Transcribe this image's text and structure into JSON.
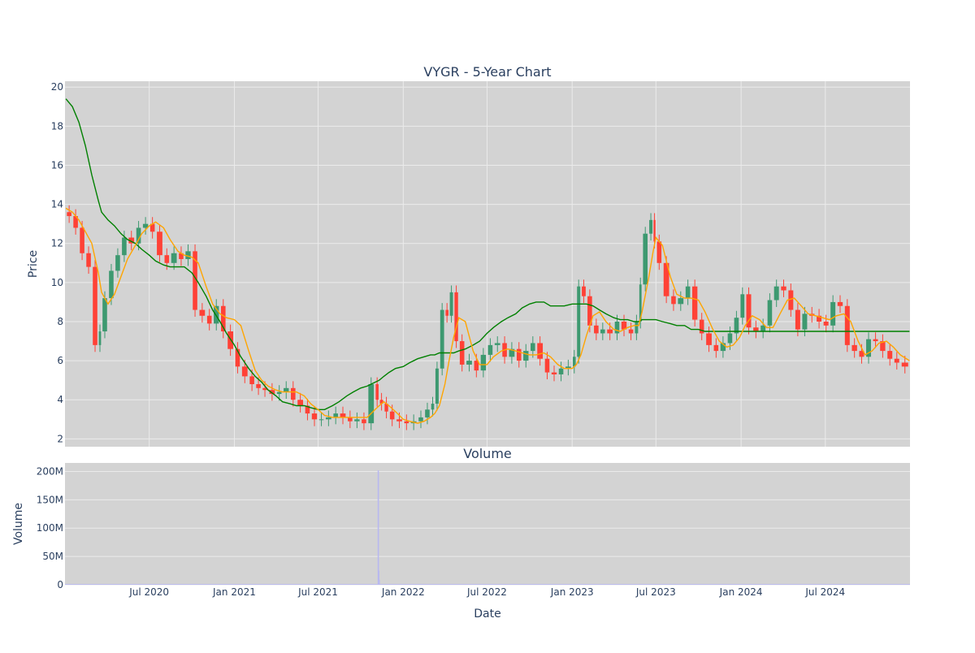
{
  "chart_data": [
    {
      "type": "candlestick",
      "title": "VYGR - 5-Year Chart",
      "ylabel": "Price",
      "ylim": [
        1.6,
        20.3
      ],
      "yticks": [
        2,
        4,
        6,
        8,
        10,
        12,
        14,
        16,
        18,
        20
      ],
      "xlim": [
        "2020-01-01",
        "2024-12-31"
      ],
      "grid": true,
      "legend": "none",
      "colors": {
        "up": "#3d9970",
        "down": "#ff4136",
        "ma50": "#ffa500",
        "ma200": "#008000",
        "plot_bg": "#d3d3d3",
        "grid": "#ebebeb"
      },
      "series": [
        {
          "role": "price",
          "x": [
            "2020-01-03",
            "2020-01-17",
            "2020-01-31",
            "2020-02-14",
            "2020-02-28",
            "2020-03-13",
            "2020-03-20",
            "2020-04-03",
            "2020-04-17",
            "2020-05-01",
            "2020-05-15",
            "2020-06-01",
            "2020-06-15",
            "2020-07-01",
            "2020-07-15",
            "2020-08-01",
            "2020-08-15",
            "2020-09-01",
            "2020-09-15",
            "2020-10-01",
            "2020-10-15",
            "2020-11-01",
            "2020-11-15",
            "2020-12-01",
            "2020-12-15",
            "2021-01-01",
            "2021-01-15",
            "2021-02-01",
            "2021-02-15",
            "2021-03-01",
            "2021-03-15",
            "2021-04-01",
            "2021-04-15",
            "2021-05-01",
            "2021-05-15",
            "2021-06-01",
            "2021-06-15",
            "2021-07-01",
            "2021-07-15",
            "2021-08-01",
            "2021-08-15",
            "2021-09-01",
            "2021-09-15",
            "2021-10-01",
            "2021-10-15",
            "2021-11-01",
            "2021-11-10",
            "2021-11-20",
            "2021-12-01",
            "2021-12-15",
            "2022-01-01",
            "2022-01-15",
            "2022-02-01",
            "2022-02-15",
            "2022-03-01",
            "2022-03-10",
            "2022-03-20",
            "2022-04-01",
            "2022-04-10",
            "2022-04-20",
            "2022-05-01",
            "2022-05-15",
            "2022-06-01",
            "2022-06-15",
            "2022-07-01",
            "2022-07-15",
            "2022-08-01",
            "2022-08-15",
            "2022-09-01",
            "2022-09-15",
            "2022-10-01",
            "2022-10-15",
            "2022-11-01",
            "2022-11-15",
            "2022-12-01",
            "2022-12-15",
            "2023-01-01",
            "2023-01-10",
            "2023-01-20",
            "2023-02-01",
            "2023-02-15",
            "2023-03-01",
            "2023-03-15",
            "2023-04-01",
            "2023-04-15",
            "2023-05-01",
            "2023-05-15",
            "2023-05-25",
            "2023-06-01",
            "2023-06-15",
            "2023-06-25",
            "2023-07-01",
            "2023-07-15",
            "2023-08-01",
            "2023-08-15",
            "2023-09-01",
            "2023-09-15",
            "2023-10-01",
            "2023-10-15",
            "2023-11-01",
            "2023-11-15",
            "2023-12-01",
            "2023-12-15",
            "2023-12-29",
            "2024-01-10",
            "2024-01-25",
            "2024-02-10",
            "2024-02-25",
            "2024-03-10",
            "2024-03-25",
            "2024-04-10",
            "2024-04-25",
            "2024-05-10",
            "2024-05-25",
            "2024-06-10",
            "2024-06-25",
            "2024-07-10",
            "2024-07-25",
            "2024-08-10",
            "2024-08-25",
            "2024-09-10",
            "2024-09-25",
            "2024-10-10",
            "2024-10-25",
            "2024-11-10",
            "2024-11-25",
            "2024-12-10",
            "2024-12-30"
          ],
          "close": [
            13.6,
            13.4,
            12.8,
            11.5,
            10.8,
            6.8,
            7.5,
            9.2,
            10.6,
            11.4,
            12.3,
            12.0,
            12.8,
            13.0,
            12.6,
            11.4,
            11.0,
            11.5,
            11.2,
            11.6,
            8.6,
            8.3,
            7.9,
            8.8,
            7.5,
            6.6,
            5.7,
            5.2,
            4.8,
            4.6,
            4.5,
            4.3,
            4.4,
            4.6,
            4.0,
            3.7,
            3.3,
            3.0,
            3.0,
            3.1,
            3.3,
            3.1,
            2.9,
            3.0,
            2.8,
            4.8,
            4.0,
            3.8,
            3.4,
            3.0,
            2.9,
            2.8,
            2.9,
            3.1,
            3.5,
            3.8,
            5.6,
            8.6,
            8.3,
            9.5,
            7.0,
            5.8,
            6.0,
            5.5,
            6.3,
            6.8,
            6.9,
            6.2,
            6.6,
            6.0,
            6.5,
            6.9,
            6.1,
            5.4,
            5.3,
            5.6,
            5.7,
            6.2,
            9.8,
            9.3,
            7.8,
            7.4,
            7.6,
            7.4,
            8.0,
            7.6,
            7.4,
            8.0,
            9.9,
            12.5,
            13.2,
            12.1,
            11.0,
            9.3,
            8.9,
            9.2,
            9.8,
            8.1,
            7.4,
            6.8,
            6.5,
            6.9,
            7.4,
            8.2,
            9.4,
            7.7,
            7.5,
            7.8,
            9.1,
            9.8,
            9.6,
            8.6,
            7.6,
            8.4,
            8.3,
            8.0,
            7.8,
            9.0,
            8.8,
            6.8,
            6.5,
            6.2,
            7.1,
            7.0,
            6.5,
            6.1,
            5.9,
            5.7
          ],
          "ma50": [
            13.8,
            13.6,
            13.2,
            12.6,
            12.0,
            10.5,
            9.5,
            8.9,
            9.4,
            10.3,
            11.2,
            11.9,
            12.5,
            12.9,
            13.1,
            12.8,
            12.2,
            11.6,
            11.4,
            11.3,
            11.0,
            9.8,
            8.9,
            8.4,
            8.2,
            8.1,
            7.8,
            6.5,
            5.5,
            5.0,
            4.7,
            4.5,
            4.4,
            4.4,
            4.4,
            4.2,
            3.8,
            3.5,
            3.2,
            3.1,
            3.1,
            3.1,
            3.1,
            3.1,
            3.1,
            3.5,
            3.7,
            3.9,
            3.7,
            3.4,
            3.0,
            2.9,
            2.8,
            2.9,
            3.1,
            3.3,
            3.7,
            4.8,
            6.0,
            7.2,
            8.2,
            8.0,
            6.5,
            5.8,
            5.8,
            6.2,
            6.5,
            6.6,
            6.5,
            6.4,
            6.3,
            6.3,
            6.4,
            6.2,
            5.8,
            5.6,
            5.6,
            5.8,
            6.3,
            7.3,
            8.3,
            8.5,
            8.0,
            7.6,
            7.5,
            7.7,
            7.8,
            7.8,
            8.5,
            10.2,
            11.6,
            12.3,
            11.9,
            10.3,
            9.4,
            9.2,
            9.2,
            9.1,
            8.5,
            7.6,
            7.0,
            6.7,
            6.8,
            7.2,
            7.8,
            8.3,
            8.1,
            7.7,
            7.7,
            8.4,
            9.1,
            9.2,
            8.8,
            8.4,
            8.3,
            8.2,
            8.1,
            8.3,
            8.4,
            8.0,
            7.0,
            6.3,
            6.5,
            6.9,
            7.0,
            6.7,
            6.3,
            6.0
          ],
          "ma200": [
            19.4,
            19.0,
            18.2,
            17.0,
            15.5,
            14.2,
            13.6,
            13.2,
            12.9,
            12.5,
            12.2,
            12.0,
            11.7,
            11.4,
            11.1,
            10.9,
            10.8,
            10.8,
            10.8,
            10.5,
            10.0,
            9.3,
            8.6,
            8.0,
            7.4,
            6.8,
            6.2,
            5.6,
            5.2,
            4.9,
            4.5,
            4.2,
            3.9,
            3.8,
            3.7,
            3.7,
            3.6,
            3.5,
            3.5,
            3.7,
            3.9,
            4.2,
            4.4,
            4.6,
            4.7,
            4.9,
            5.0,
            5.2,
            5.4,
            5.6,
            5.7,
            5.9,
            6.1,
            6.2,
            6.3,
            6.3,
            6.4,
            6.4,
            6.4,
            6.4,
            6.5,
            6.6,
            6.8,
            7.0,
            7.4,
            7.7,
            8.0,
            8.2,
            8.4,
            8.7,
            8.9,
            9.0,
            9.0,
            8.8,
            8.8,
            8.8,
            8.9,
            8.9,
            8.9,
            8.9,
            8.8,
            8.6,
            8.4,
            8.2,
            8.1,
            8.1,
            8.0,
            8.0,
            8.1,
            8.1,
            8.1,
            8.1,
            8.0,
            7.9,
            7.8,
            7.8,
            7.6,
            7.6,
            7.5,
            7.5,
            7.5,
            7.5,
            7.5,
            7.5,
            7.5,
            7.5,
            7.5,
            7.5,
            7.5,
            7.5,
            7.5,
            7.5,
            7.5,
            7.5,
            7.5,
            7.5,
            7.5,
            7.5,
            7.5,
            7.5,
            7.5,
            7.5,
            7.5,
            7.5,
            7.5,
            7.5,
            7.5,
            7.5,
            7.5,
            7.5
          ]
        }
      ]
    },
    {
      "type": "bar",
      "title": "Volume",
      "xlabel": "Date",
      "ylabel": "Volume",
      "ylim": [
        0,
        215000000
      ],
      "yticks": [
        0,
        50000000,
        100000000,
        150000000,
        200000000
      ],
      "ytick_labels": [
        "0",
        "50M",
        "100M",
        "150M",
        "200M"
      ],
      "xticks": [
        "2020-07-01",
        "2021-01-01",
        "2021-07-01",
        "2022-01-01",
        "2022-07-01",
        "2023-01-01",
        "2023-07-01",
        "2024-01-01",
        "2024-07-01"
      ],
      "xtick_labels": [
        "Jul 2020",
        "Jan 2021",
        "Jul 2021",
        "Jan 2022",
        "Jul 2022",
        "Jan 2023",
        "Jul 2023",
        "Jan 2024",
        "Jul 2024"
      ],
      "grid": true,
      "colors": {
        "bar": "#b8b8f0",
        "plot_bg": "#d3d3d3"
      },
      "spikes": [
        {
          "x": "2021-11-08",
          "value": 202000000
        },
        {
          "x": "2021-11-09",
          "value": 25000000
        },
        {
          "x": "2021-11-10",
          "value": 9000000
        }
      ],
      "baseline_volume": 1200000
    }
  ]
}
